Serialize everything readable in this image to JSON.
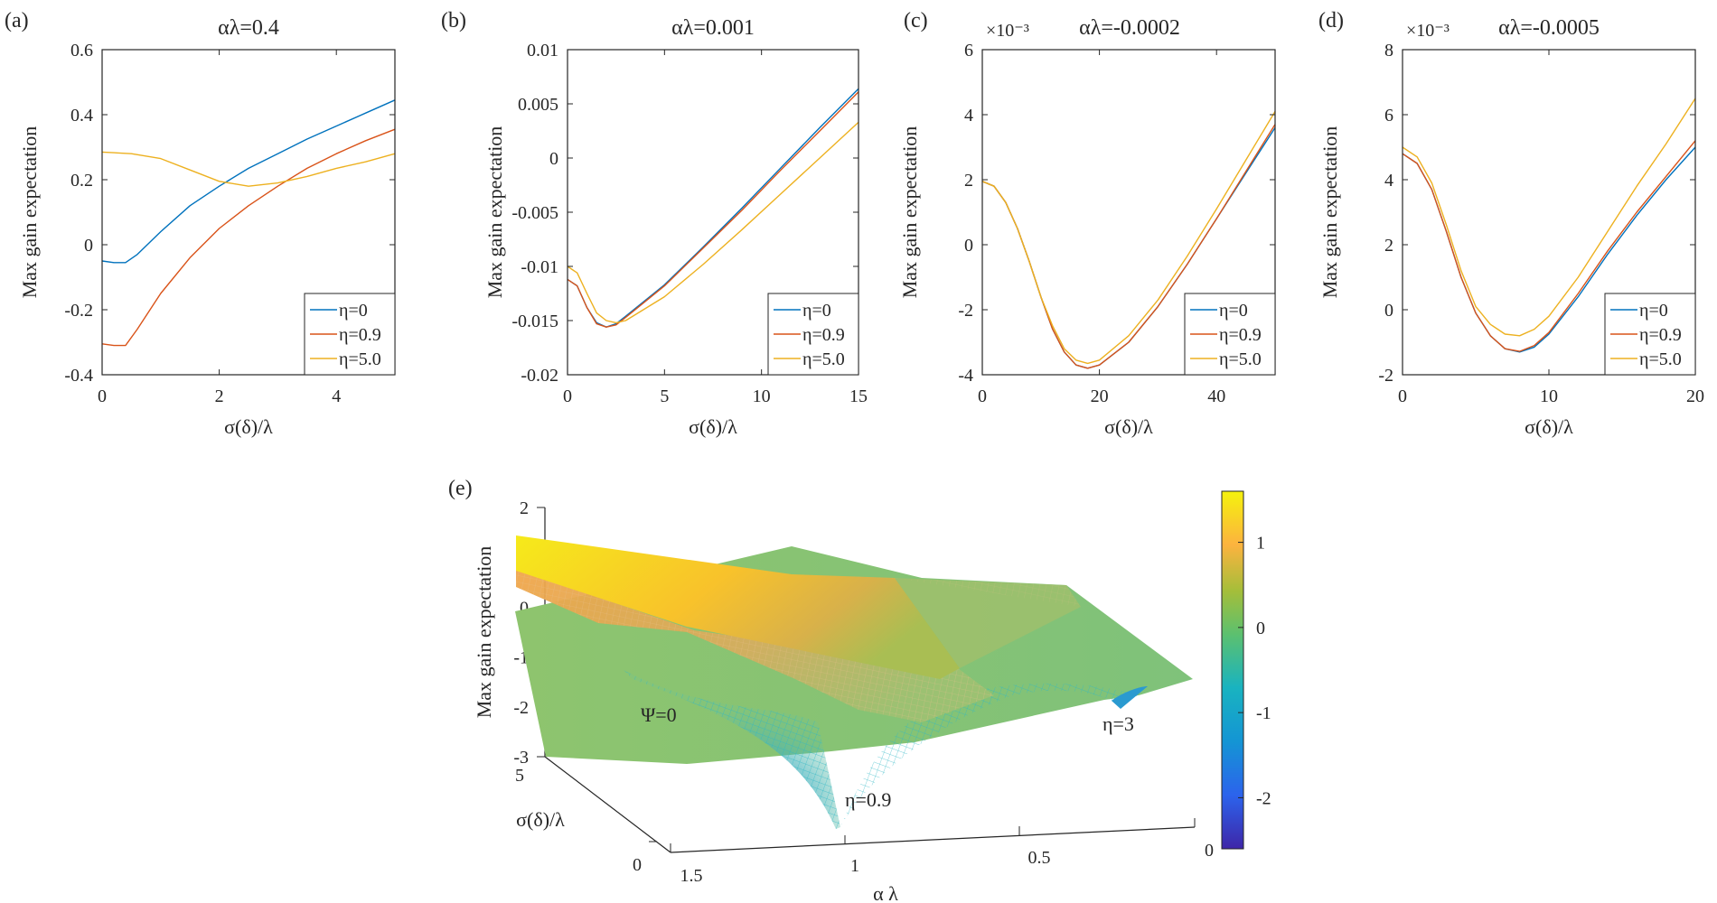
{
  "chart_data": [
    {
      "panel": "(a)",
      "type": "line",
      "title": "αλ=0.4",
      "xlabel": "σ(δ)/λ",
      "ylabel": "Max gain expectation",
      "xlim": [
        0,
        5
      ],
      "ylim": [
        -0.4,
        0.6
      ],
      "xticks": [
        "0",
        "2",
        "4"
      ],
      "xtick_values": [
        0,
        2,
        4
      ],
      "yticks": [
        "-0.4",
        "-0.2",
        "0",
        "0.2",
        "0.4",
        "0.6"
      ],
      "ytick_values": [
        -0.4,
        -0.2,
        0,
        0.2,
        0.4,
        0.6
      ],
      "exponent": "",
      "legend_position": "bottom-right",
      "series": [
        {
          "name": "η=0",
          "color": "#0072BD",
          "x": [
            0,
            0.2,
            0.4,
            0.6,
            1.0,
            1.5,
            2.0,
            2.5,
            3.0,
            3.5,
            4.0,
            4.5,
            5.0
          ],
          "y": [
            -0.05,
            -0.055,
            -0.055,
            -0.03,
            0.04,
            0.12,
            0.18,
            0.235,
            0.28,
            0.325,
            0.365,
            0.405,
            0.445
          ]
        },
        {
          "name": "η=0.9",
          "color": "#D95319",
          "x": [
            0,
            0.2,
            0.4,
            0.6,
            1.0,
            1.5,
            2.0,
            2.5,
            3.0,
            3.5,
            4.0,
            4.5,
            5.0
          ],
          "y": [
            -0.305,
            -0.31,
            -0.31,
            -0.26,
            -0.15,
            -0.04,
            0.05,
            0.12,
            0.18,
            0.235,
            0.28,
            0.32,
            0.355
          ]
        },
        {
          "name": "η=5.0",
          "color": "#EDB120",
          "x": [
            0,
            0.5,
            1.0,
            1.5,
            2.0,
            2.5,
            3.0,
            3.5,
            4.0,
            4.5,
            5.0
          ],
          "y": [
            0.285,
            0.28,
            0.265,
            0.23,
            0.195,
            0.18,
            0.19,
            0.21,
            0.235,
            0.255,
            0.28
          ]
        }
      ]
    },
    {
      "panel": "(b)",
      "type": "line",
      "title": "αλ=0.001",
      "xlabel": "σ(δ)/λ",
      "ylabel": "Max gain expectation",
      "xlim": [
        0,
        15
      ],
      "ylim": [
        -0.02,
        0.01
      ],
      "xticks": [
        "0",
        "5",
        "10",
        "15"
      ],
      "xtick_values": [
        0,
        5,
        10,
        15
      ],
      "yticks": [
        "-0.02",
        "-0.015",
        "-0.01",
        "-0.005",
        "0",
        "0.005",
        "0.01"
      ],
      "ytick_values": [
        -0.02,
        -0.015,
        -0.01,
        -0.005,
        0,
        0.005,
        0.01
      ],
      "exponent": "",
      "legend_position": "bottom-right",
      "series": [
        {
          "name": "η=0",
          "color": "#0072BD",
          "x": [
            0,
            0.5,
            1,
            1.5,
            2,
            2.5,
            3,
            5,
            7,
            9,
            11,
            13,
            15
          ],
          "y": [
            -0.0112,
            -0.0118,
            -0.0138,
            -0.0152,
            -0.0156,
            -0.0153,
            -0.0146,
            -0.0117,
            -0.0082,
            -0.0046,
            -0.0009,
            0.0028,
            0.0064
          ]
        },
        {
          "name": "η=0.9",
          "color": "#D95319",
          "x": [
            0,
            0.5,
            1,
            1.5,
            2,
            2.5,
            3,
            5,
            7,
            9,
            11,
            13,
            15
          ],
          "y": [
            -0.0112,
            -0.0118,
            -0.0138,
            -0.0153,
            -0.0156,
            -0.0154,
            -0.0147,
            -0.0118,
            -0.0083,
            -0.0048,
            -0.0011,
            0.0025,
            0.0061
          ]
        },
        {
          "name": "η=5.0",
          "color": "#EDB120",
          "x": [
            0,
            0.5,
            1,
            1.5,
            2,
            2.5,
            3,
            5,
            7,
            9,
            11,
            13,
            15
          ],
          "y": [
            -0.01,
            -0.0106,
            -0.0125,
            -0.0143,
            -0.015,
            -0.0152,
            -0.015,
            -0.0128,
            -0.0098,
            -0.0066,
            -0.0033,
            0.0,
            0.0033
          ]
        }
      ]
    },
    {
      "panel": "(c)",
      "type": "line",
      "title": "αλ=-0.0002",
      "xlabel": "σ(δ)/λ",
      "ylabel": "Max gain expectation",
      "xlim": [
        0,
        50
      ],
      "ylim": [
        -4,
        6
      ],
      "xticks": [
        "0",
        "20",
        "40"
      ],
      "xtick_values": [
        0,
        20,
        40
      ],
      "yticks": [
        "-4",
        "-2",
        "0",
        "2",
        "4",
        "6"
      ],
      "ytick_values": [
        -4,
        -2,
        0,
        2,
        4,
        6
      ],
      "exponent": "×10⁻³",
      "legend_position": "bottom-right",
      "series": [
        {
          "name": "η=0",
          "color": "#0072BD",
          "x": [
            0,
            2,
            4,
            6,
            8,
            10,
            12,
            14,
            16,
            18,
            20,
            25,
            30,
            35,
            40,
            45,
            50
          ],
          "y": [
            1.95,
            1.8,
            1.3,
            0.5,
            -0.5,
            -1.6,
            -2.6,
            -3.3,
            -3.7,
            -3.8,
            -3.7,
            -3.0,
            -1.9,
            -0.6,
            0.8,
            2.2,
            3.6
          ]
        },
        {
          "name": "η=0.9",
          "color": "#D95319",
          "x": [
            0,
            2,
            4,
            6,
            8,
            10,
            12,
            14,
            16,
            18,
            20,
            25,
            30,
            35,
            40,
            45,
            50
          ],
          "y": [
            1.95,
            1.8,
            1.3,
            0.5,
            -0.5,
            -1.6,
            -2.6,
            -3.3,
            -3.7,
            -3.8,
            -3.7,
            -3.0,
            -1.9,
            -0.6,
            0.8,
            2.25,
            3.7
          ]
        },
        {
          "name": "η=5.0",
          "color": "#EDB120",
          "x": [
            0,
            2,
            4,
            6,
            8,
            10,
            12,
            14,
            16,
            18,
            20,
            25,
            30,
            35,
            40,
            45,
            50
          ],
          "y": [
            1.95,
            1.8,
            1.3,
            0.5,
            -0.5,
            -1.6,
            -2.5,
            -3.2,
            -3.55,
            -3.65,
            -3.55,
            -2.8,
            -1.7,
            -0.35,
            1.1,
            2.6,
            4.1
          ]
        }
      ]
    },
    {
      "panel": "(d)",
      "type": "line",
      "title": "αλ=-0.0005",
      "xlabel": "σ(δ)/λ",
      "ylabel": "Max gain expectation",
      "xlim": [
        0,
        20
      ],
      "ylim": [
        -2,
        8
      ],
      "xticks": [
        "0",
        "10",
        "20"
      ],
      "xtick_values": [
        0,
        10,
        20
      ],
      "yticks": [
        "-2",
        "0",
        "2",
        "4",
        "6",
        "8"
      ],
      "ytick_values": [
        -2,
        0,
        2,
        4,
        6,
        8
      ],
      "exponent": "×10⁻³",
      "legend_position": "bottom-right",
      "series": [
        {
          "name": "η=0",
          "color": "#0072BD",
          "x": [
            0,
            1,
            2,
            3,
            4,
            5,
            6,
            7,
            8,
            9,
            10,
            12,
            14,
            16,
            18,
            20
          ],
          "y": [
            4.8,
            4.5,
            3.7,
            2.4,
            1.0,
            -0.1,
            -0.8,
            -1.2,
            -1.3,
            -1.15,
            -0.75,
            0.4,
            1.7,
            2.9,
            4.0,
            5.0
          ]
        },
        {
          "name": "η=0.9",
          "color": "#D95319",
          "x": [
            0,
            1,
            2,
            3,
            4,
            5,
            6,
            7,
            8,
            9,
            10,
            12,
            14,
            16,
            18,
            20
          ],
          "y": [
            4.8,
            4.5,
            3.7,
            2.4,
            1.0,
            -0.1,
            -0.8,
            -1.2,
            -1.28,
            -1.1,
            -0.7,
            0.5,
            1.8,
            3.0,
            4.1,
            5.2
          ]
        },
        {
          "name": "η=5.0",
          "color": "#EDB120",
          "x": [
            0,
            1,
            2,
            3,
            4,
            5,
            6,
            7,
            8,
            9,
            10,
            12,
            14,
            16,
            18,
            20
          ],
          "y": [
            5.0,
            4.7,
            3.9,
            2.6,
            1.2,
            0.1,
            -0.45,
            -0.75,
            -0.8,
            -0.6,
            -0.2,
            1.0,
            2.4,
            3.8,
            5.1,
            6.5
          ]
        }
      ]
    },
    {
      "panel": "(e)",
      "type": "surface",
      "xlabel": "α λ",
      "ylabel": "σ(δ)/λ",
      "zlabel": "Max gain expectation",
      "xlim": [
        0,
        1.5
      ],
      "ylim": [
        0,
        5
      ],
      "zlim": [
        -3,
        2
      ],
      "xticks": [
        "1.5",
        "1",
        "0.5",
        "0"
      ],
      "yticks": [
        "0",
        "5"
      ],
      "zticks": [
        "-3",
        "-2",
        "-1",
        "0",
        "1",
        "2"
      ],
      "colorbar": {
        "ticks": [
          "-2",
          "-1",
          "0",
          "1"
        ],
        "tick_values": [
          -2,
          -1,
          0,
          1
        ],
        "range": [
          -2.6,
          1.6
        ]
      },
      "annotations": [
        "Ψ=0",
        "η=0.9",
        "η=3"
      ]
    }
  ]
}
